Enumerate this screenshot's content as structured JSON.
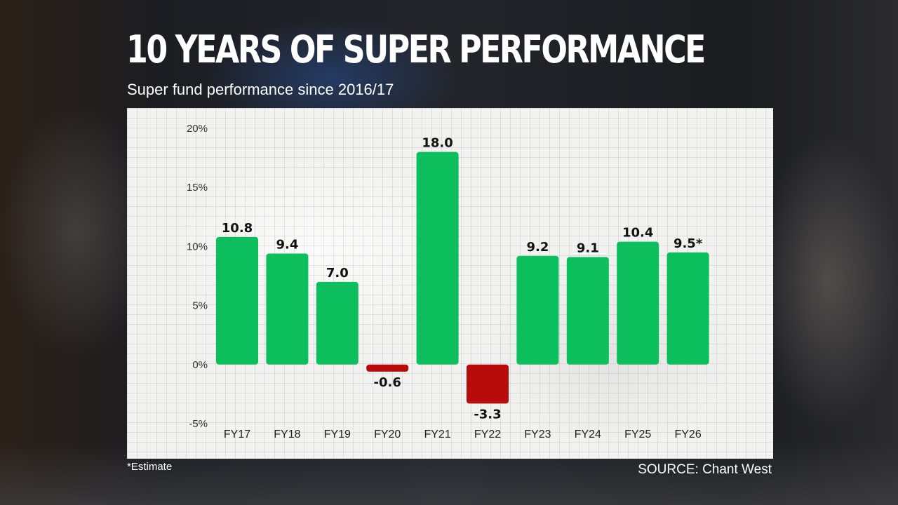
{
  "header": {
    "title": "10 YEARS OF SUPER PERFORMANCE",
    "subtitle": "Super fund performance since 2016/17"
  },
  "footer": {
    "footnote": "*Estimate",
    "source": "SOURCE: Chant West"
  },
  "colors": {
    "positive": "#0dbf5c",
    "negative": "#b80b0b"
  },
  "chart_data": {
    "type": "bar",
    "title": "10 YEARS OF SUPER PERFORMANCE",
    "subtitle": "Super fund performance since 2016/17",
    "categories": [
      "FY17",
      "FY18",
      "FY19",
      "FY20",
      "FY21",
      "FY22",
      "FY23",
      "FY24",
      "FY25",
      "FY26"
    ],
    "values": [
      10.8,
      9.4,
      7.0,
      -0.6,
      18.0,
      -3.3,
      9.2,
      9.1,
      10.4,
      9.5
    ],
    "value_labels": [
      "10.8",
      "9.4",
      "7.0",
      "-0.6",
      "18.0",
      "-3.3",
      "9.2",
      "9.1",
      "10.4",
      "9.5*"
    ],
    "yticks": [
      -5,
      0,
      5,
      10,
      15,
      20
    ],
    "ytick_labels": [
      "-5%",
      "0%",
      "5%",
      "10%",
      "15%",
      "20%"
    ],
    "ylim": [
      -5,
      20
    ],
    "xlabel": "",
    "ylabel": "",
    "grid": true,
    "legend": "none"
  }
}
